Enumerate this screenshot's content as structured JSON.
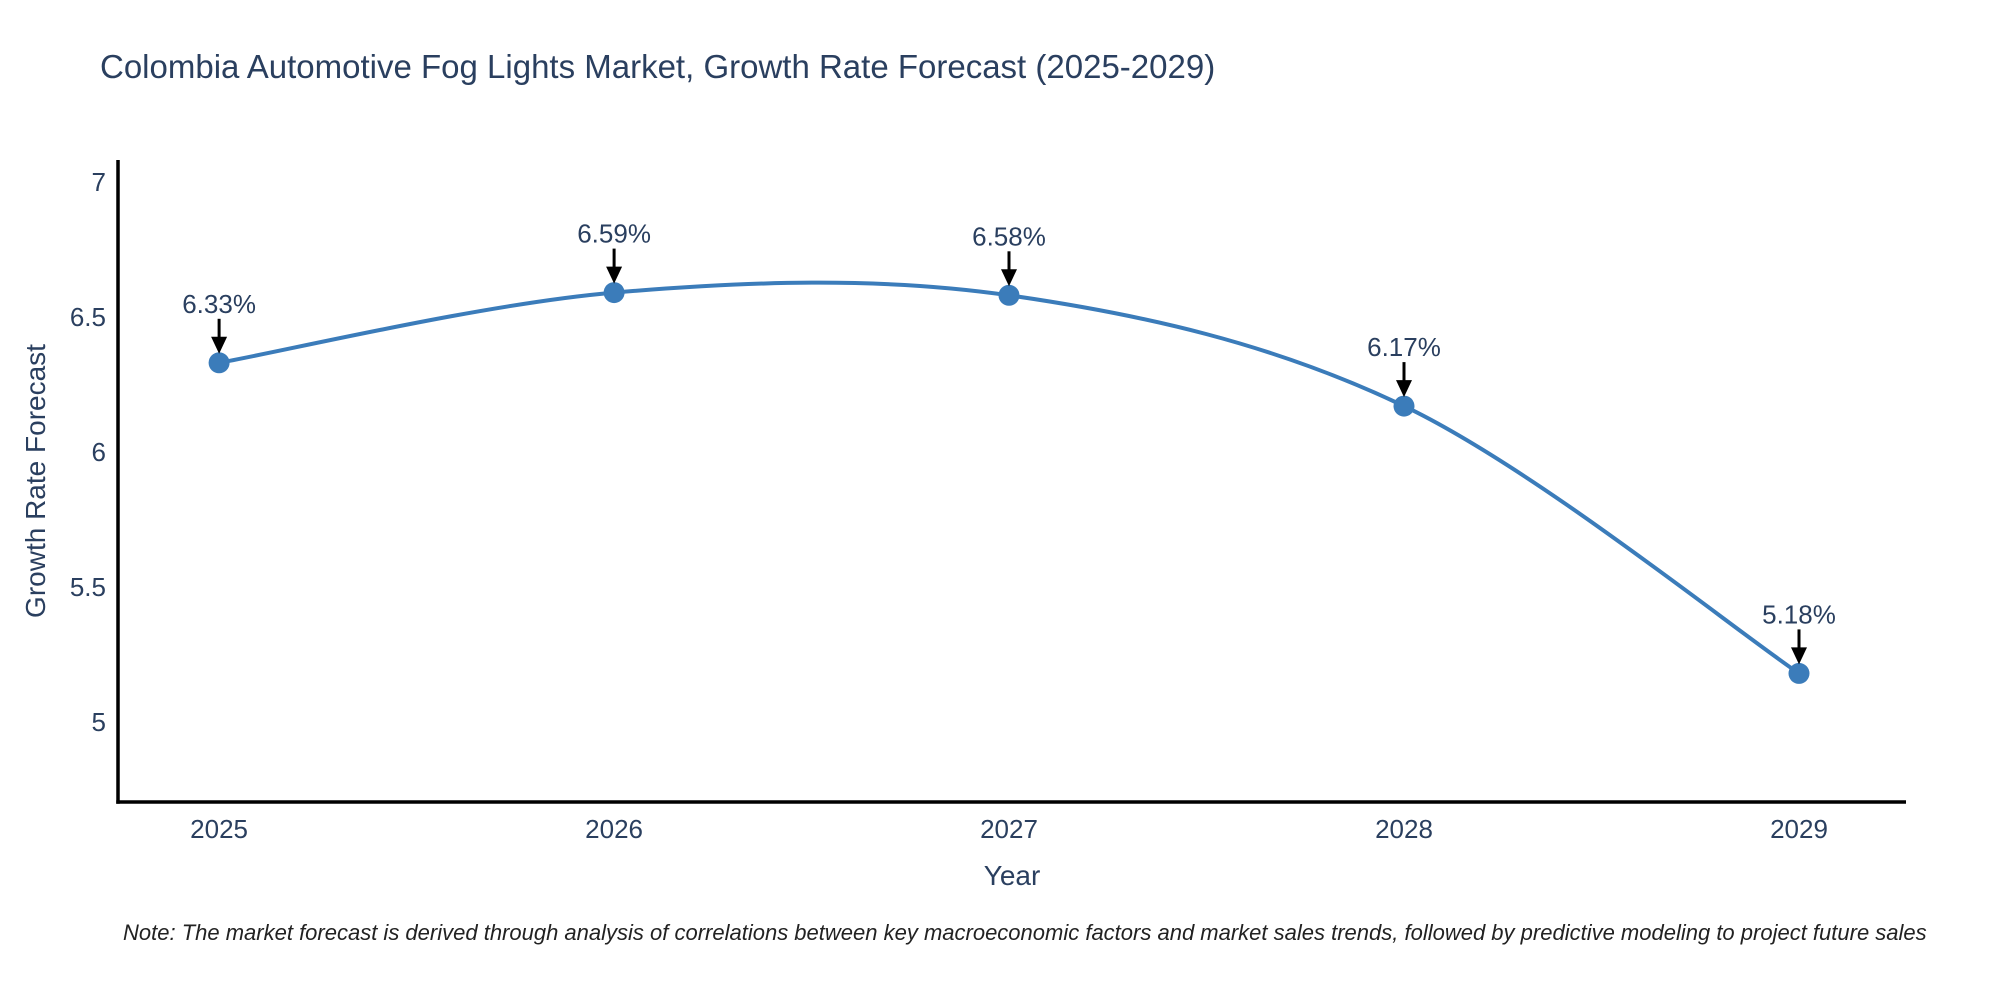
{
  "title": "Colombia Automotive Fog Lights Market, Growth Rate Forecast (2025-2029)",
  "note": "Note: The market forecast is derived through analysis of correlations between key macroeconomic factors and market sales trends, followed by predictive modeling to project future sales",
  "colors": {
    "title_text": "#2a3f5f",
    "axis_text": "#2a3f5f",
    "tick_text": "#2a3f5f",
    "annotation_text": "#2a3f5f",
    "line": "#3b7cba",
    "marker": "#3b7cba",
    "axis_line": "#000000",
    "arrow": "#000000",
    "background": "#ffffff",
    "note_text": "#222222"
  },
  "chart_data": {
    "type": "line",
    "title": "Colombia Automotive Fog Lights Market, Growth Rate Forecast (2025-2029)",
    "xlabel": "Year",
    "ylabel": "Growth Rate Forecast",
    "x": [
      2025,
      2026,
      2027,
      2028,
      2029
    ],
    "values": [
      6.33,
      6.59,
      6.58,
      6.17,
      5.18
    ],
    "point_labels": [
      "6.33%",
      "6.59%",
      "6.58%",
      "6.17%",
      "5.18%"
    ],
    "x_tick_labels": [
      "2025",
      "2026",
      "2027",
      "2028",
      "2029"
    ],
    "y_tick_values": [
      7,
      6.5,
      6,
      5.5,
      5
    ],
    "y_tick_labels": [
      "7",
      "6.5",
      "6",
      "5.5",
      "5"
    ],
    "x_range": [
      2024.744,
      2029.271
    ],
    "y_range": [
      4.704,
      7.081
    ],
    "line_shape": "spline",
    "grid": false,
    "legend_shown": false
  }
}
